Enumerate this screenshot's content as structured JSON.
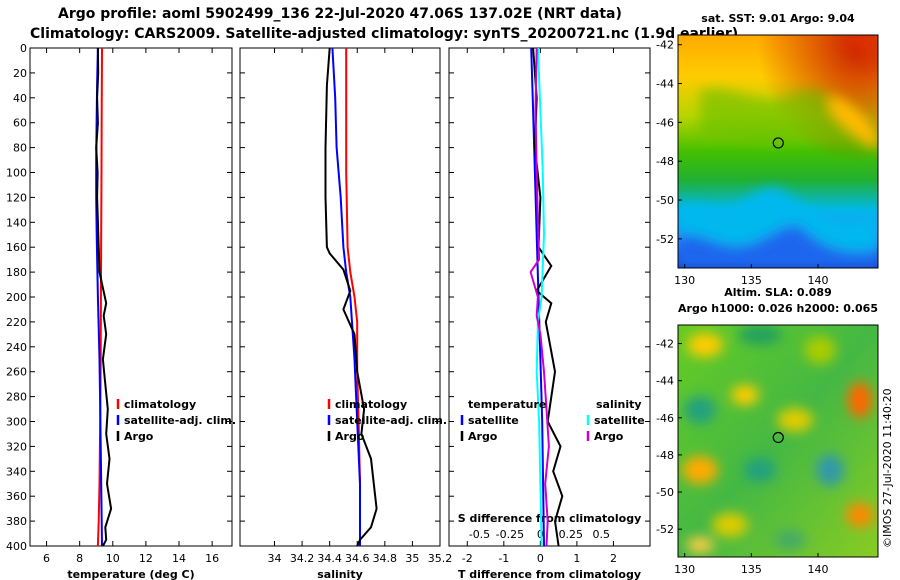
{
  "header": {
    "title_line1": "Argo profile: aoml 5902499_136 22-Jul-2020 47.06S 137.02E (NRT data)",
    "title_line2": "Climatology: CARS2009. Satellite-adjusted climatology: synTS_20200721.nc (1.9d earlier)"
  },
  "colors": {
    "climatology": "#ff0000",
    "satellite": "#0000ff",
    "argo": "#000000",
    "sal_satellite": "#00ffff",
    "sal_argo": "#cc00cc"
  },
  "chart_data": [
    {
      "type": "line",
      "name": "temperature-profile",
      "xlabel": "temperature (deg C)",
      "ylabel": "",
      "xlim": [
        5,
        17.2
      ],
      "ylim": [
        0,
        400
      ],
      "x_ticks": [
        6,
        8,
        10,
        12,
        14,
        16
      ],
      "y_ticks": [
        0,
        20,
        40,
        60,
        80,
        100,
        120,
        140,
        160,
        180,
        200,
        220,
        240,
        260,
        280,
        300,
        320,
        340,
        360,
        380,
        400
      ],
      "legend": [
        "climatology",
        "satellite-adj. clim.",
        "Argo"
      ],
      "series": [
        {
          "name": "climatology",
          "color": "#ff0000",
          "x": [
            9.35,
            9.33,
            9.32,
            9.3,
            9.28,
            9.27,
            9.24,
            9.2,
            9.15,
            9.1
          ],
          "y": [
            0,
            50,
            100,
            150,
            200,
            250,
            300,
            350,
            380,
            400
          ]
        },
        {
          "name": "satellite-adj. clim.",
          "color": "#0000ff",
          "x": [
            9.1,
            9.05,
            9.02,
            9.0,
            9.0,
            9.03,
            9.1,
            9.2,
            9.25,
            9.3,
            9.35
          ],
          "y": [
            0,
            30,
            60,
            90,
            120,
            150,
            200,
            250,
            300,
            350,
            400
          ]
        },
        {
          "name": "Argo",
          "color": "#000000",
          "x": [
            9.1,
            9.12,
            9.05,
            9.1,
            9.0,
            9.08,
            9.05,
            9.1,
            9.15,
            9.2,
            9.6,
            9.45,
            9.6,
            9.4,
            9.55,
            9.7,
            9.6,
            9.8,
            9.65,
            9.9,
            9.55,
            9.6,
            9.4
          ],
          "y": [
            0,
            20,
            40,
            60,
            80,
            100,
            120,
            140,
            160,
            180,
            205,
            215,
            230,
            250,
            270,
            290,
            310,
            330,
            350,
            370,
            385,
            395,
            400
          ]
        }
      ]
    },
    {
      "type": "line",
      "name": "salinity-profile",
      "xlabel": "salinity",
      "ylabel": "",
      "xlim": [
        33.75,
        35.2
      ],
      "ylim": [
        0,
        400
      ],
      "x_ticks": [
        34,
        34.2,
        34.4,
        34.6,
        34.8,
        35,
        35.2
      ],
      "legend": [
        "climatology",
        "satellite-adj. clim.",
        "Argo"
      ],
      "series": [
        {
          "name": "climatology",
          "color": "#ff0000",
          "x": [
            34.52,
            34.52,
            34.53,
            34.55,
            34.58,
            34.6,
            34.6,
            34.61,
            34.62,
            34.62
          ],
          "y": [
            0,
            100,
            160,
            180,
            200,
            220,
            260,
            300,
            350,
            400
          ]
        },
        {
          "name": "satellite-adj. clim.",
          "color": "#0000ff",
          "x": [
            34.42,
            34.44,
            34.45,
            34.48,
            34.5,
            34.52,
            34.55,
            34.58,
            34.6,
            34.62,
            34.62
          ],
          "y": [
            0,
            40,
            80,
            120,
            160,
            180,
            200,
            250,
            300,
            350,
            400
          ]
        },
        {
          "name": "Argo",
          "color": "#000000",
          "x": [
            34.4,
            34.38,
            34.37,
            34.37,
            34.38,
            34.4,
            34.5,
            34.55,
            34.5,
            34.58,
            34.6,
            34.65,
            34.63,
            34.7,
            34.72,
            34.74,
            34.7,
            34.62,
            34.6
          ],
          "y": [
            0,
            30,
            80,
            120,
            160,
            165,
            178,
            195,
            210,
            230,
            260,
            290,
            310,
            330,
            350,
            370,
            385,
            395,
            400
          ]
        }
      ]
    },
    {
      "type": "line",
      "name": "difference-profile",
      "xlabel": "T difference from climatology",
      "x2label": "S difference from climatology",
      "xlim": [
        -2.5,
        3.0
      ],
      "x2lim": [
        -0.75,
        0.9
      ],
      "ylim": [
        0,
        400
      ],
      "x_ticks": [
        -2,
        -1,
        0,
        1,
        2
      ],
      "x2_ticks": [
        -0.5,
        -0.25,
        0,
        0.25,
        0.5
      ],
      "legend_groups": [
        {
          "title": "temperature",
          "items": [
            "satellite",
            "Argo"
          ]
        },
        {
          "title": "salinity",
          "items": [
            "satellite",
            "Argo"
          ]
        }
      ],
      "series": [
        {
          "name": "T satellite",
          "color": "#0000ff",
          "axis": "T",
          "x": [
            -0.25,
            -0.2,
            -0.15,
            -0.1,
            -0.05,
            0.0,
            0.05,
            0.1
          ],
          "y": [
            0,
            50,
            100,
            150,
            200,
            250,
            300,
            400
          ]
        },
        {
          "name": "T Argo",
          "color": "#000000",
          "axis": "T",
          "x": [
            -0.2,
            -0.1,
            -0.15,
            0.0,
            -0.05,
            0.3,
            -0.1,
            0.3,
            0.15,
            0.4,
            0.2,
            0.55,
            0.35,
            0.6,
            0.4,
            0.5
          ],
          "y": [
            0,
            40,
            80,
            120,
            160,
            175,
            195,
            205,
            220,
            260,
            300,
            320,
            340,
            360,
            380,
            400
          ]
        },
        {
          "name": "S satellite",
          "color": "#00ffff",
          "axis": "S",
          "x": [
            -0.02,
            0.0,
            0.02,
            0.03,
            0.01,
            -0.02,
            -0.03,
            -0.01,
            0.0,
            0.01
          ],
          "y": [
            0,
            50,
            100,
            150,
            200,
            220,
            260,
            300,
            350,
            400
          ]
        },
        {
          "name": "S Argo",
          "color": "#cc00cc",
          "axis": "S",
          "x": [
            -0.03,
            -0.04,
            -0.03,
            -0.02,
            -0.01,
            -0.08,
            -0.02,
            -0.03,
            0.0,
            0.03,
            0.05,
            0.07,
            0.04,
            0.06,
            0.05
          ],
          "y": [
            0,
            50,
            100,
            140,
            170,
            180,
            200,
            215,
            230,
            260,
            290,
            320,
            350,
            380,
            400
          ]
        }
      ]
    },
    {
      "type": "heatmap",
      "name": "sst-map",
      "title": "sat. SST: 9.01  Argo: 9.04",
      "xlim": [
        129.5,
        144.5
      ],
      "ylim": [
        -53.5,
        -41.5
      ],
      "x_ticks": [
        130,
        135,
        140
      ],
      "y_ticks": [
        -42,
        -44,
        -46,
        -48,
        -50,
        -52
      ],
      "marker": {
        "lon": 137.02,
        "lat": -47.06
      }
    },
    {
      "type": "heatmap",
      "name": "sla-map",
      "title_line1": "Altim. SLA: 0.089",
      "title_line2": "Argo h1000: 0.026 h2000: 0.065",
      "xlim": [
        129.5,
        144.5
      ],
      "ylim": [
        -53.5,
        -41
      ],
      "x_ticks": [
        130,
        135,
        140
      ],
      "y_ticks": [
        -42,
        -44,
        -46,
        -48,
        -50,
        -52
      ],
      "marker": {
        "lon": 137.02,
        "lat": -47.06
      }
    }
  ],
  "legend_labels": {
    "climatology": "climatology",
    "satellite_adj": "satellite-adj. clim.",
    "argo": "Argo",
    "temperature": "temperature",
    "salinity": "salinity",
    "satellite": "satellite"
  },
  "footer": {
    "imos_stamp": "©IMOS 27-Jul-2020 11:40:20"
  }
}
